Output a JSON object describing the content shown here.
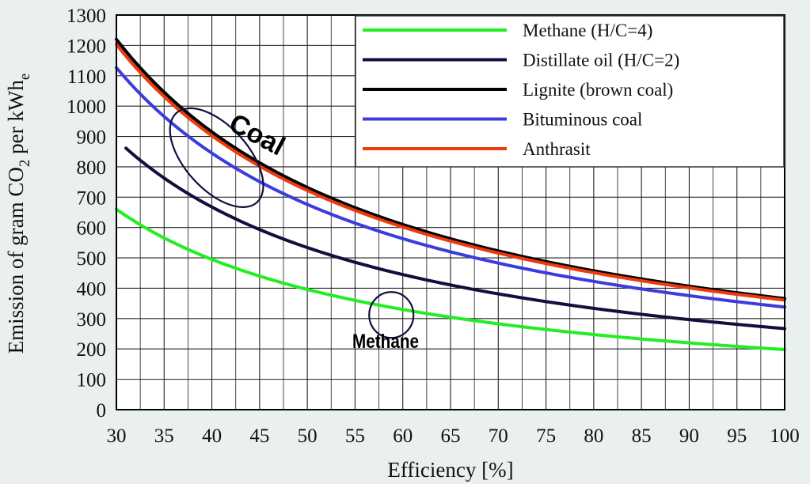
{
  "chart_data": {
    "type": "line",
    "xlabel": "Efficiency  [%]",
    "ylabel_parts": {
      "main": "Emission of gram CO",
      "sub": "2",
      "mid": " per kWh",
      "sub2": "e"
    },
    "xlim": [
      30,
      100
    ],
    "ylim": [
      0,
      1300
    ],
    "x_ticks": [
      30,
      35,
      40,
      45,
      50,
      55,
      60,
      65,
      70,
      75,
      80,
      85,
      90,
      95,
      100
    ],
    "y_ticks": [
      0,
      100,
      200,
      300,
      400,
      500,
      600,
      700,
      800,
      900,
      1000,
      1100,
      1200,
      1300
    ],
    "x_minor_ticks": [
      32.5,
      37.5,
      42.5,
      47.5,
      52.5,
      57.5,
      62.5,
      67.5,
      72.5,
      77.5,
      82.5,
      87.5,
      92.5,
      97.5
    ],
    "grid": true,
    "legend_position": "top-right",
    "series": [
      {
        "name": "Methane (H/C=4)",
        "color": "#22ee22",
        "x_start": 30,
        "emission_at_100": 198
      },
      {
        "name": "Distillate oil (H/C=2)",
        "color": "#101040",
        "x_start": 31,
        "emission_at_100": 267
      },
      {
        "name": "Lignite (brown coal)",
        "color": "#000000",
        "x_start": 30,
        "emission_at_100": 366
      },
      {
        "name": "Bituminous coal",
        "color": "#3c3cdc",
        "x_start": 30,
        "emission_at_100": 338
      },
      {
        "name": "Anthrasit",
        "color": "#ee3a0c",
        "x_start": 30,
        "emission_at_100": 361
      }
    ],
    "annotations": [
      {
        "text": "Coal",
        "color": "#101040"
      },
      {
        "text": "Methane",
        "color": "#101040"
      }
    ]
  }
}
